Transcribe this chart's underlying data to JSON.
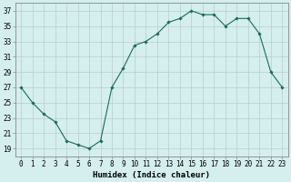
{
  "x": [
    0,
    1,
    2,
    3,
    4,
    5,
    6,
    7,
    8,
    9,
    10,
    11,
    12,
    13,
    14,
    15,
    16,
    17,
    18,
    19,
    20,
    21,
    22,
    23
  ],
  "y": [
    27,
    25,
    23.5,
    22.5,
    20,
    19.5,
    19,
    20,
    27,
    29.5,
    32.5,
    33,
    34,
    35.5,
    36,
    37,
    36.5,
    36.5,
    35,
    36,
    36,
    34,
    29,
    27
  ],
  "line_color": "#1a6b5a",
  "marker": "D",
  "marker_size": 1.8,
  "bg_color": "#d5eeee",
  "grid_color": "#b8cece",
  "xlabel": "Humidex (Indice chaleur)",
  "xlim": [
    -0.5,
    23.5
  ],
  "ylim": [
    18,
    38
  ],
  "yticks": [
    19,
    21,
    23,
    25,
    27,
    29,
    31,
    33,
    35,
    37
  ],
  "xtick_labels": [
    "0",
    "1",
    "2",
    "3",
    "4",
    "5",
    "6",
    "7",
    "8",
    "9",
    "10",
    "11",
    "12",
    "13",
    "14",
    "15",
    "16",
    "17",
    "18",
    "19",
    "20",
    "21",
    "22",
    "23"
  ],
  "xlabel_fontsize": 6.5,
  "tick_fontsize": 5.5,
  "linewidth": 0.8
}
